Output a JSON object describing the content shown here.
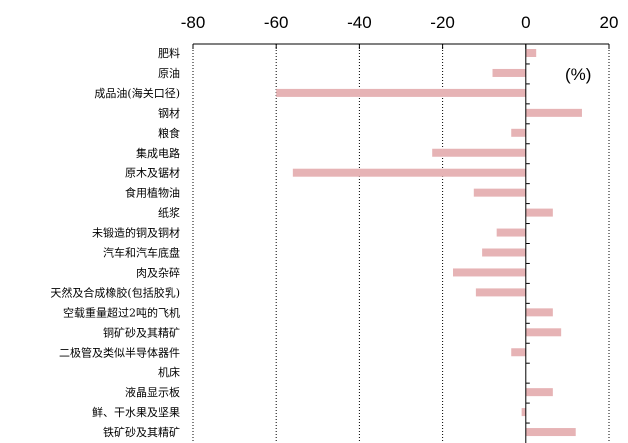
{
  "chart_data": {
    "type": "bar",
    "orientation": "horizontal",
    "unit_label": "(%)",
    "xlim": [
      -80,
      20
    ],
    "x_ticks": [
      "-80",
      "-60",
      "-40",
      "-20",
      "0",
      "20"
    ],
    "gridlines": "vertical dotted",
    "bar_color": "#e6b3b5",
    "categories": [
      "肥料",
      "原油",
      "成品油(海关口径)",
      "钢材",
      "粮食",
      "集成电路",
      "原木及锯材",
      "食用植物油",
      "纸浆",
      "未锻造的铜及铜材",
      "汽车和汽车底盘",
      "肉及杂碎",
      "天然及合成橡胶(包括胶乳)",
      "空载重量超过2吨的飞机",
      "铜矿砂及其精矿",
      "二极管及类似半导体器件",
      "机床",
      "液晶显示板",
      "鲜、干水果及坚果",
      "铁矿砂及其精矿"
    ],
    "values": [
      2.5,
      -8,
      -60,
      13.5,
      -3.5,
      -22.5,
      -56,
      -12.5,
      6.5,
      -7,
      -10.5,
      -17.5,
      -12,
      6.5,
      8.5,
      -3.5,
      0,
      6.5,
      -1,
      12
    ]
  }
}
